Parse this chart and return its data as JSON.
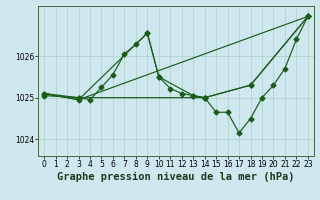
{
  "background_color": "#cfe8f0",
  "grid_color_major": "#b0d4c8",
  "grid_color_minor": "#d8eee8",
  "line_color": "#1a5c1a",
  "title": "Graphe pression niveau de la mer (hPa)",
  "xlim": [
    -0.5,
    23.5
  ],
  "ylim": [
    1023.6,
    1027.2
  ],
  "yticks": [
    1024,
    1025,
    1026
  ],
  "xticks": [
    0,
    1,
    2,
    3,
    4,
    5,
    6,
    7,
    8,
    9,
    10,
    11,
    12,
    13,
    14,
    15,
    16,
    17,
    18,
    19,
    20,
    21,
    22,
    23
  ],
  "series1_x": [
    0,
    3,
    4,
    5,
    6,
    7,
    8,
    9,
    10,
    11,
    12,
    13,
    14,
    15,
    16,
    17,
    18,
    19,
    20,
    21,
    22,
    23
  ],
  "series1_y": [
    1025.1,
    1025.0,
    1024.95,
    1025.25,
    1025.55,
    1026.05,
    1026.28,
    1026.55,
    1025.5,
    1025.22,
    1025.1,
    1025.05,
    1025.0,
    1024.65,
    1024.65,
    1024.15,
    1024.5,
    1025.0,
    1025.3,
    1025.7,
    1026.4,
    1026.95
  ],
  "series2_x": [
    0,
    3,
    9,
    10,
    13,
    14,
    18,
    23
  ],
  "series2_y": [
    1025.1,
    1024.95,
    1026.55,
    1025.5,
    1025.05,
    1025.0,
    1025.3,
    1026.95
  ],
  "series3_x": [
    0,
    3,
    23
  ],
  "series3_y": [
    1025.1,
    1024.95,
    1026.95
  ],
  "series4_x": [
    0,
    3,
    14,
    18,
    23
  ],
  "series4_y": [
    1025.05,
    1025.0,
    1025.0,
    1025.3,
    1026.95
  ],
  "title_fontsize": 7.5,
  "tick_fontsize": 5.5
}
